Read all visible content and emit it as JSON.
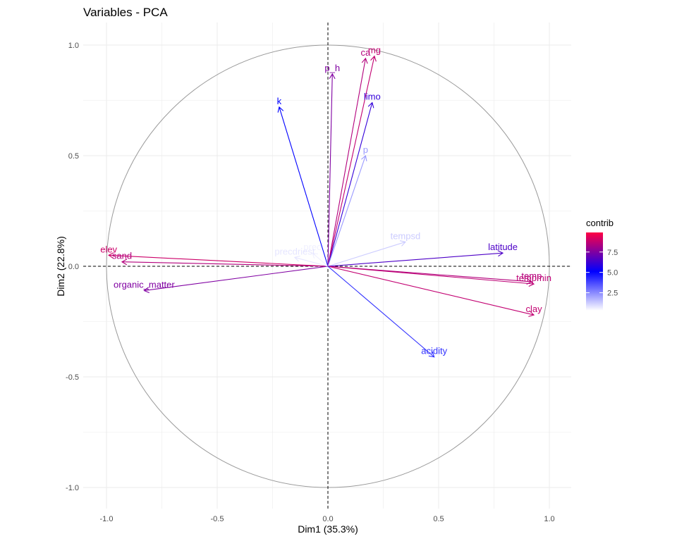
{
  "chart_data": {
    "type": "scatter",
    "subtype": "pca-variable-correlation-circle",
    "title": "Variables - PCA",
    "xlabel": "Dim1 (35.3%)",
    "ylabel": "Dim2 (22.8%)",
    "xlim": [
      -1.1,
      1.1
    ],
    "ylim": [
      -1.1,
      1.1
    ],
    "xticks": [
      -1.0,
      -0.5,
      0.0,
      0.5,
      1.0
    ],
    "yticks": [
      -1.0,
      -0.5,
      0.0,
      0.5,
      1.0
    ],
    "xtick_labels": [
      "-1.0",
      "-0.5",
      "0.0",
      "0.5",
      "1.0"
    ],
    "ytick_labels": [
      "-1.0",
      "-0.5",
      "0.0",
      "0.5",
      "1.0"
    ],
    "grid": true,
    "unit_circle": true,
    "reference_lines": "dashed at x=0 and y=0",
    "legend": {
      "title": "contrib",
      "position": "right",
      "range": [
        0,
        10
      ],
      "ticks": [
        2.5,
        5.0,
        7.5
      ],
      "tick_labels": [
        "2.5",
        "5.0",
        "7.5"
      ],
      "colors": [
        "#ffffff",
        "#0000ff",
        "#ff0044"
      ]
    },
    "variables": [
      {
        "name": "elev",
        "x": -0.99,
        "y": 0.05,
        "contrib": 9.0
      },
      {
        "name": "sand",
        "x": -0.93,
        "y": 0.02,
        "contrib": 8.5
      },
      {
        "name": "organic_matter",
        "x": -0.83,
        "y": -0.11,
        "contrib": 7.5
      },
      {
        "name": "prec",
        "x": -0.07,
        "y": 0.06,
        "contrib": 0.3
      },
      {
        "name": "precdriest",
        "x": -0.15,
        "y": 0.04,
        "contrib": 0.5
      },
      {
        "name": "k",
        "x": -0.22,
        "y": 0.72,
        "contrib": 5.0
      },
      {
        "name": "p_h",
        "x": 0.02,
        "y": 0.87,
        "contrib": 7.5
      },
      {
        "name": "ca",
        "x": 0.17,
        "y": 0.94,
        "contrib": 8.5
      },
      {
        "name": "mg",
        "x": 0.21,
        "y": 0.95,
        "contrib": 8.8
      },
      {
        "name": "limo",
        "x": 0.2,
        "y": 0.74,
        "contrib": 6.0
      },
      {
        "name": "p",
        "x": 0.17,
        "y": 0.5,
        "contrib": 2.0
      },
      {
        "name": "tempsd",
        "x": 0.35,
        "y": 0.11,
        "contrib": 1.0
      },
      {
        "name": "latitude",
        "x": 0.79,
        "y": 0.06,
        "contrib": 6.5
      },
      {
        "name": "temp",
        "x": 0.92,
        "y": -0.07,
        "contrib": 8.5
      },
      {
        "name": "tempmin",
        "x": 0.93,
        "y": -0.08,
        "contrib": 8.7
      },
      {
        "name": "clay",
        "x": 0.93,
        "y": -0.22,
        "contrib": 8.8
      },
      {
        "name": "acidity",
        "x": 0.48,
        "y": -0.41,
        "contrib": 4.0
      }
    ]
  }
}
